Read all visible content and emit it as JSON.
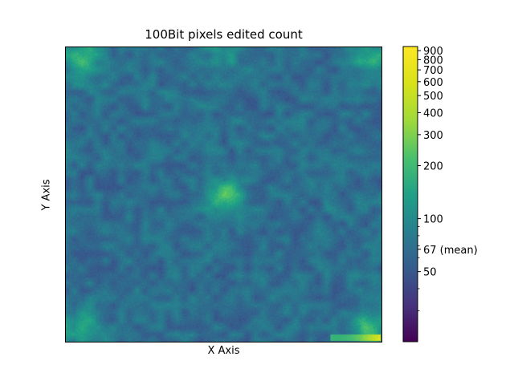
{
  "chart_data": {
    "type": "heatmap",
    "title": "100Bit pixels edited count",
    "xlabel": "X Axis",
    "ylabel": "Y Axis",
    "colormap": "viridis",
    "color_scale": "log",
    "color_range": [
      20,
      950
    ],
    "mean": 67,
    "colorbar_ticks": [
      {
        "value": 900,
        "label": "900"
      },
      {
        "value": 800,
        "label": "800"
      },
      {
        "value": 700,
        "label": "700"
      },
      {
        "value": 600,
        "label": "600"
      },
      {
        "value": 500,
        "label": "500"
      },
      {
        "value": 400,
        "label": "400"
      },
      {
        "value": 300,
        "label": "300"
      },
      {
        "value": 200,
        "label": "200"
      },
      {
        "value": 100,
        "label": "100"
      },
      {
        "value": 67,
        "label": "67 (mean)"
      },
      {
        "value": 50,
        "label": "50"
      }
    ],
    "colorbar_minor_ticks": [
      90,
      80,
      70,
      60,
      40,
      30
    ],
    "hotspots": [
      {
        "x": 0.05,
        "y": 0.04,
        "value": 170,
        "label": "top-left corner"
      },
      {
        "x": 0.97,
        "y": 0.04,
        "value": 150,
        "label": "top-right corner"
      },
      {
        "x": 0.5,
        "y": 0.02,
        "value": 120,
        "label": "top edge"
      },
      {
        "x": 0.5,
        "y": 0.5,
        "value": 200,
        "label": "center"
      },
      {
        "x": 0.05,
        "y": 0.95,
        "value": 150,
        "label": "bottom-left corner"
      },
      {
        "x": 0.96,
        "y": 0.95,
        "value": 180,
        "label": "bottom-right corner"
      }
    ],
    "grid": false
  }
}
